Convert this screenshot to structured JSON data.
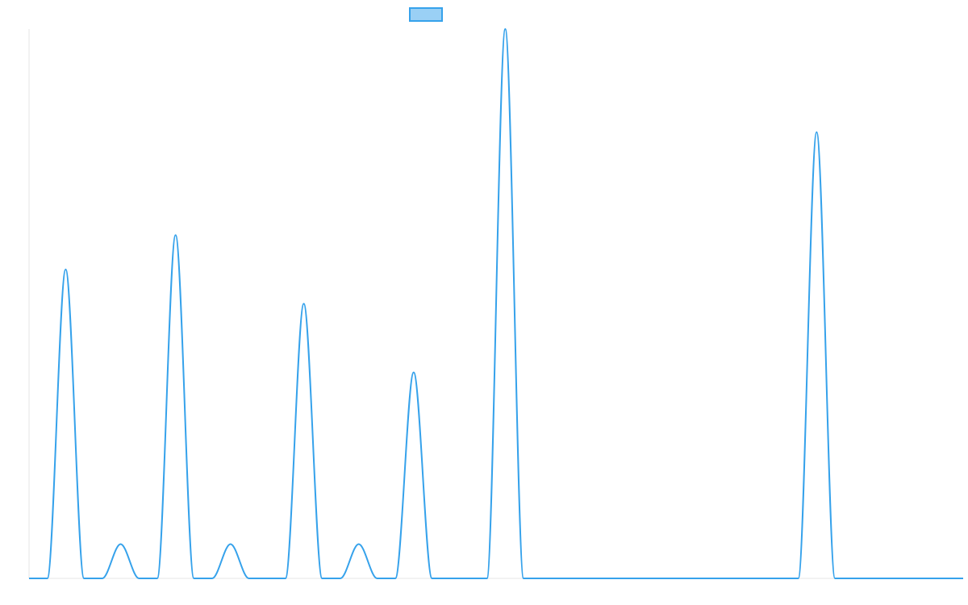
{
  "chart_data": {
    "type": "area",
    "title": "",
    "xlabel": "",
    "ylabel": "",
    "grid": false,
    "legend": {
      "placement": "top-center",
      "entries": [
        {
          "name": ""
        }
      ]
    },
    "xlim": [
      0,
      51
    ],
    "ylim": [
      0,
      16
    ],
    "x": [
      0,
      1,
      2,
      3,
      4,
      5,
      6,
      7,
      8,
      9,
      10,
      11,
      12,
      13,
      14,
      15,
      16,
      17,
      18,
      19,
      20,
      21,
      22,
      23,
      24,
      25,
      26,
      27,
      28,
      29,
      30,
      31,
      32,
      33,
      34,
      35,
      36,
      37,
      38,
      39,
      40,
      41,
      42,
      43,
      44,
      45,
      46,
      47,
      48,
      49,
      50,
      51
    ],
    "series": [
      {
        "name": "",
        "color": "#36a2eb",
        "fill": "#9ad0f5",
        "values": [
          0,
          0,
          9,
          0,
          0,
          1,
          0,
          0,
          10,
          0,
          0,
          1,
          0,
          0,
          0,
          8,
          0,
          0,
          1,
          0,
          0,
          6,
          0,
          0,
          0,
          0,
          16,
          0,
          0,
          0,
          0,
          0,
          0,
          0,
          0,
          0,
          0,
          0,
          0,
          0,
          0,
          0,
          0,
          13,
          0,
          0,
          0,
          0,
          0,
          0,
          0,
          0
        ]
      }
    ]
  }
}
